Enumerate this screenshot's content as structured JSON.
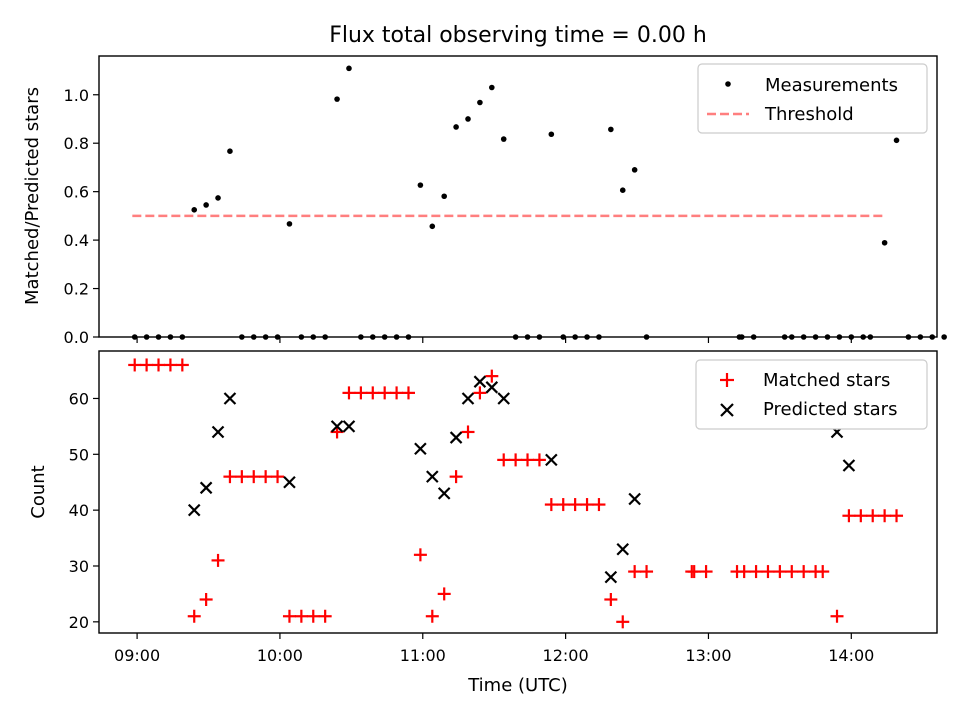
{
  "title": "Flux total observing time = 0.00 h",
  "chart_data": [
    {
      "type": "scatter",
      "panel": "top",
      "title": "Flux total observing time = 0.00 h",
      "ylabel": "Matched/Predicted stars",
      "xlabel": "",
      "ylim": [
        0,
        1.16
      ],
      "yticks": [
        0.0,
        0.2,
        0.4,
        0.6,
        0.8,
        1.0
      ],
      "ytick_labels": [
        "0.0",
        "0.2",
        "0.4",
        "0.6",
        "0.8",
        "1.0"
      ],
      "xlim": [
        "08:44",
        "14:36"
      ],
      "legend_position": "top-right",
      "legend": [
        "Measurements",
        "Threshold"
      ],
      "colors": {
        "measurements": "#000000",
        "threshold": "#ff7f7f"
      },
      "threshold": {
        "name": "Threshold",
        "y": 0.5,
        "x_start": "08:58",
        "x_end": "14:14"
      },
      "series": [
        {
          "name": "Measurements",
          "points": [
            [
              "08:59",
              0.0
            ],
            [
              "09:04",
              0.0
            ],
            [
              "09:09",
              0.0
            ],
            [
              "09:14",
              0.0
            ],
            [
              "09:19",
              0.0
            ],
            [
              "09:24",
              0.525
            ],
            [
              "09:29",
              0.545
            ],
            [
              "09:34",
              0.574
            ],
            [
              "09:39",
              0.767
            ],
            [
              "09:44",
              0.0
            ],
            [
              "09:49",
              0.0
            ],
            [
              "09:54",
              0.0
            ],
            [
              "09:59",
              0.0
            ],
            [
              "10:04",
              0.467
            ],
            [
              "10:09",
              0.0
            ],
            [
              "10:14",
              0.0
            ],
            [
              "10:19",
              0.0
            ],
            [
              "10:24",
              0.982
            ],
            [
              "10:29",
              1.109
            ],
            [
              "10:34",
              0.0
            ],
            [
              "10:39",
              0.0
            ],
            [
              "10:44",
              0.0
            ],
            [
              "10:49",
              0.0
            ],
            [
              "10:54",
              0.0
            ],
            [
              "10:59",
              0.627
            ],
            [
              "11:04",
              0.457
            ],
            [
              "11:09",
              0.581
            ],
            [
              "11:14",
              0.867
            ],
            [
              "11:19",
              0.9
            ],
            [
              "11:24",
              0.968
            ],
            [
              "11:29",
              1.03
            ],
            [
              "11:34",
              0.817
            ],
            [
              "11:39",
              0.0
            ],
            [
              "11:44",
              0.0
            ],
            [
              "11:49",
              0.0
            ],
            [
              "11:54",
              0.837
            ],
            [
              "11:59",
              0.0
            ],
            [
              "12:04",
              0.0
            ],
            [
              "12:09",
              0.0
            ],
            [
              "12:14",
              0.0
            ],
            [
              "12:19",
              0.857
            ],
            [
              "12:24",
              0.606
            ],
            [
              "12:29",
              0.69
            ],
            [
              "12:34",
              0.0
            ],
            [
              "13:13",
              0.0
            ],
            [
              "13:14",
              0.0
            ],
            [
              "13:19",
              0.0
            ],
            [
              "13:32",
              0.0
            ],
            [
              "13:35",
              0.0
            ],
            [
              "13:40",
              0.0
            ],
            [
              "13:45",
              0.0
            ],
            [
              "13:50",
              0.0
            ],
            [
              "13:55",
              0.0
            ],
            [
              "14:00",
              0.0
            ],
            [
              "14:05",
              0.0
            ],
            [
              "14:08",
              0.0
            ],
            [
              "14:14",
              0.389
            ],
            [
              "14:19",
              0.812
            ],
            [
              "14:24",
              0.0
            ],
            [
              "14:29",
              0.0
            ],
            [
              "14:34",
              0.0
            ],
            [
              "14:39",
              0.0
            ]
          ]
        }
      ]
    },
    {
      "type": "scatter",
      "panel": "bottom",
      "ylabel": "Count",
      "xlabel": "Time (UTC)",
      "ylim": [
        18,
        68.5
      ],
      "yticks": [
        20,
        30,
        40,
        50,
        60
      ],
      "ytick_labels": [
        "20",
        "30",
        "40",
        "50",
        "60"
      ],
      "xlim": [
        "08:44",
        "14:36"
      ],
      "xticks": [
        "09:00",
        "10:00",
        "11:00",
        "12:00",
        "13:00",
        "14:00"
      ],
      "xtick_labels": [
        "09:00",
        "10:00",
        "11:00",
        "12:00",
        "13:00",
        "14:00"
      ],
      "legend_position": "top-right",
      "legend": [
        "Matched stars",
        "Predicted stars"
      ],
      "colors": {
        "matched": "#ff0000",
        "predicted": "#000000"
      },
      "series": [
        {
          "name": "Matched stars",
          "marker": "plus",
          "points": [
            [
              "08:59",
              66
            ],
            [
              "09:04",
              66
            ],
            [
              "09:09",
              66
            ],
            [
              "09:14",
              66
            ],
            [
              "09:19",
              66
            ],
            [
              "09:24",
              21
            ],
            [
              "09:29",
              24
            ],
            [
              "09:34",
              31
            ],
            [
              "09:39",
              46
            ],
            [
              "09:44",
              46
            ],
            [
              "09:49",
              46
            ],
            [
              "09:54",
              46
            ],
            [
              "09:59",
              46
            ],
            [
              "10:04",
              21
            ],
            [
              "10:09",
              21
            ],
            [
              "10:14",
              21
            ],
            [
              "10:19",
              21
            ],
            [
              "10:24",
              54
            ],
            [
              "10:29",
              61
            ],
            [
              "10:34",
              61
            ],
            [
              "10:39",
              61
            ],
            [
              "10:44",
              61
            ],
            [
              "10:49",
              61
            ],
            [
              "10:54",
              61
            ],
            [
              "10:59",
              32
            ],
            [
              "11:04",
              21
            ],
            [
              "11:09",
              25
            ],
            [
              "11:14",
              46
            ],
            [
              "11:19",
              54
            ],
            [
              "11:24",
              61
            ],
            [
              "11:29",
              64
            ],
            [
              "11:34",
              49
            ],
            [
              "11:39",
              49
            ],
            [
              "11:44",
              49
            ],
            [
              "11:49",
              49
            ],
            [
              "11:54",
              41
            ],
            [
              "11:59",
              41
            ],
            [
              "12:04",
              41
            ],
            [
              "12:09",
              41
            ],
            [
              "12:14",
              41
            ],
            [
              "12:19",
              24
            ],
            [
              "12:24",
              20
            ],
            [
              "12:29",
              29
            ],
            [
              "12:34",
              29
            ],
            [
              "12:53",
              29
            ],
            [
              "12:54",
              29
            ],
            [
              "12:59",
              29
            ],
            [
              "13:12",
              29
            ],
            [
              "13:15",
              29
            ],
            [
              "13:20",
              29
            ],
            [
              "13:25",
              29
            ],
            [
              "13:30",
              29
            ],
            [
              "13:35",
              29
            ],
            [
              "13:40",
              29
            ],
            [
              "13:45",
              29
            ],
            [
              "13:48",
              29
            ],
            [
              "13:54",
              21
            ],
            [
              "13:59",
              39
            ],
            [
              "14:04",
              39
            ],
            [
              "14:09",
              39
            ],
            [
              "14:14",
              39
            ],
            [
              "14:19",
              39
            ]
          ]
        },
        {
          "name": "Predicted stars",
          "marker": "x",
          "points": [
            [
              "09:24",
              40
            ],
            [
              "09:29",
              44
            ],
            [
              "09:34",
              54
            ],
            [
              "09:39",
              60
            ],
            [
              "10:04",
              45
            ],
            [
              "10:24",
              55
            ],
            [
              "10:29",
              55
            ],
            [
              "10:59",
              51
            ],
            [
              "11:04",
              46
            ],
            [
              "11:09",
              43
            ],
            [
              "11:14",
              53
            ],
            [
              "11:19",
              60
            ],
            [
              "11:24",
              63
            ],
            [
              "11:29",
              62
            ],
            [
              "11:34",
              60
            ],
            [
              "11:54",
              49
            ],
            [
              "12:19",
              28
            ],
            [
              "12:24",
              33
            ],
            [
              "12:29",
              42
            ],
            [
              "13:54",
              54
            ],
            [
              "13:59",
              48
            ]
          ]
        }
      ]
    }
  ]
}
